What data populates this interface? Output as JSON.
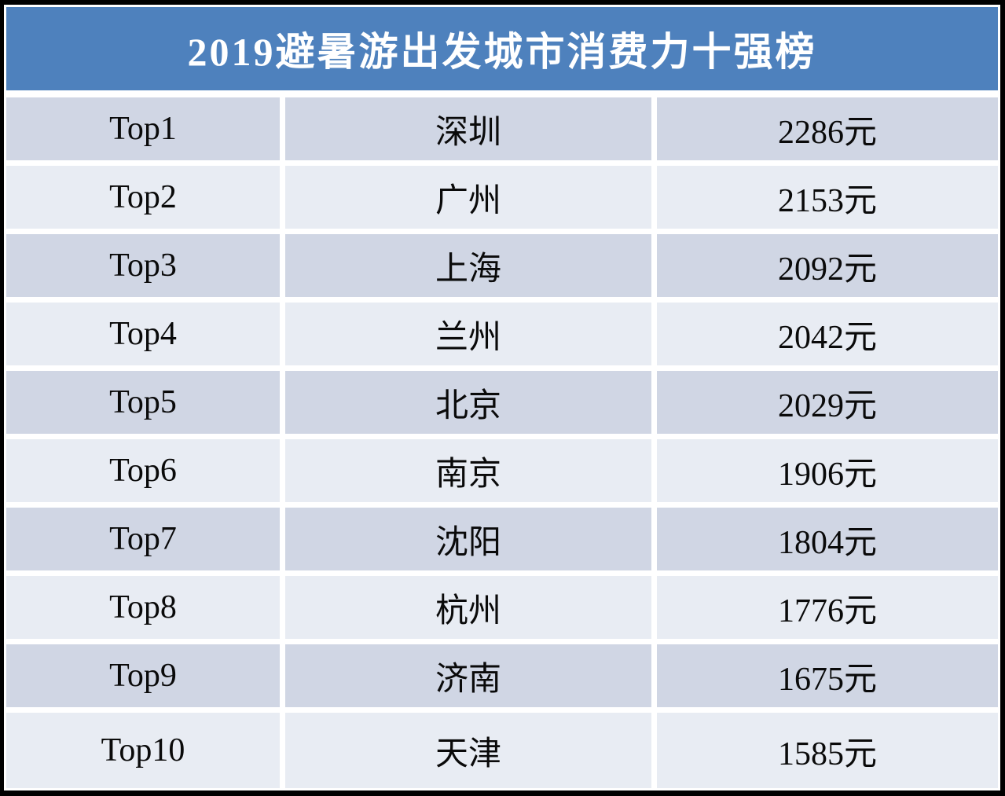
{
  "title": "2019避暑游出发城市消费力十强榜",
  "table": {
    "columns": [
      "rank",
      "city",
      "price"
    ],
    "rows": [
      {
        "rank": "Top1",
        "city": "深圳",
        "price": "2286元"
      },
      {
        "rank": "Top2",
        "city": "广州",
        "price": "2153元"
      },
      {
        "rank": "Top3",
        "city": "上海",
        "price": "2092元"
      },
      {
        "rank": "Top4",
        "city": "兰州",
        "price": "2042元"
      },
      {
        "rank": "Top5",
        "city": "北京",
        "price": "2029元"
      },
      {
        "rank": "Top6",
        "city": "南京",
        "price": "1906元"
      },
      {
        "rank": "Top7",
        "city": "沈阳",
        "price": "1804元"
      },
      {
        "rank": "Top8",
        "city": "杭州",
        "price": "1776元"
      },
      {
        "rank": "Top9",
        "city": "济南",
        "price": "1675元"
      },
      {
        "rank": "Top10",
        "city": "天津",
        "price": "1585元"
      }
    ]
  },
  "chart_data": {
    "type": "table",
    "title": "2019避暑游出发城市消费力十强榜",
    "categories": [
      "深圳",
      "广州",
      "上海",
      "兰州",
      "北京",
      "南京",
      "沈阳",
      "杭州",
      "济南",
      "天津"
    ],
    "values": [
      2286,
      2153,
      2092,
      2042,
      2029,
      1906,
      1804,
      1776,
      1675,
      1585
    ],
    "unit": "元"
  },
  "colors": {
    "header_bg": "#4E81BD",
    "row_dark": "#D0D6E4",
    "row_light": "#E8ECF3",
    "title_text": "#FFFFFF",
    "cell_text": "#0A0A0A",
    "separator": "#FFFFFF",
    "outer_border": "#000000"
  }
}
